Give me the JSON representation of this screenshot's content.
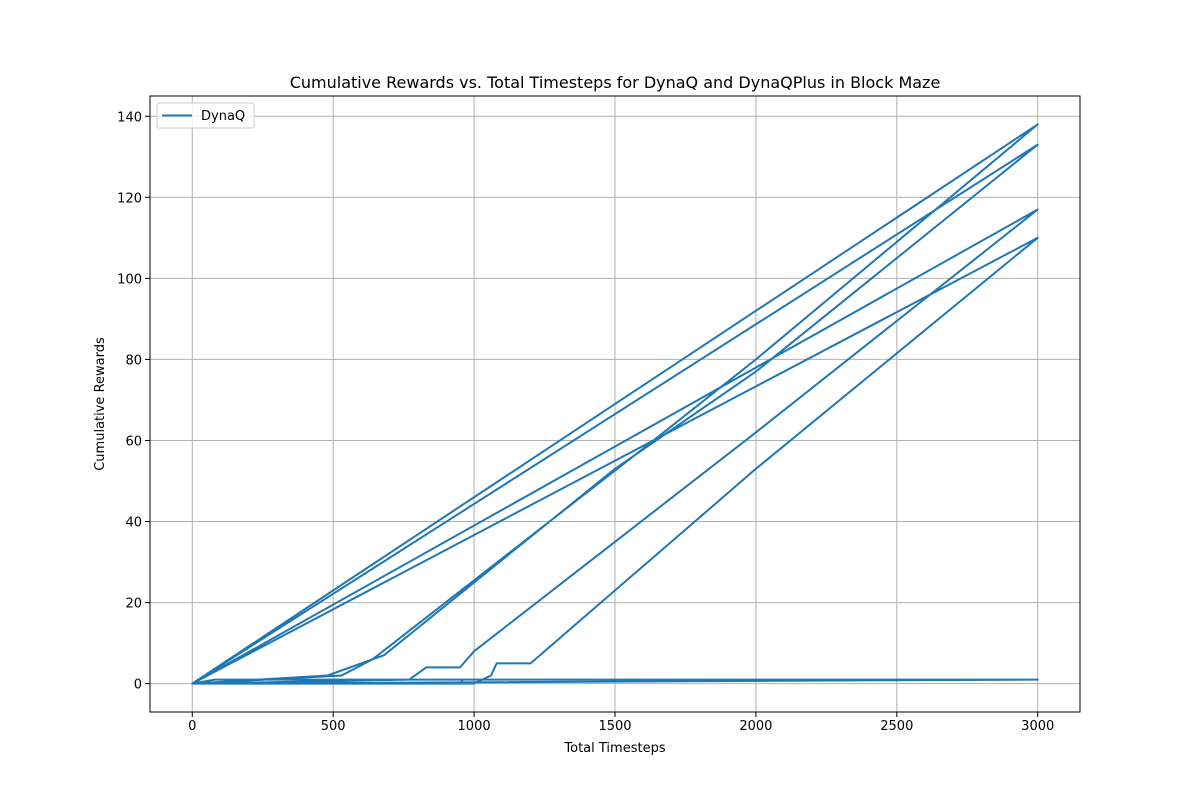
{
  "chart_data": {
    "type": "line",
    "title": "Cumulative Rewards vs. Total Timesteps for DynaQ and DynaQPlus in Block Maze",
    "xlabel": "Total Timesteps",
    "ylabel": "Cumulative Rewards",
    "xlim": [
      -150,
      3150
    ],
    "ylim": [
      -7,
      145
    ],
    "xticks": [
      0,
      500,
      1000,
      1500,
      2000,
      2500,
      3000
    ],
    "yticks": [
      0,
      20,
      40,
      60,
      80,
      100,
      120,
      140
    ],
    "xtick_labels": [
      "0",
      "500",
      "1000",
      "1500",
      "2000",
      "2500",
      "3000"
    ],
    "ytick_labels": [
      "0",
      "20",
      "40",
      "60",
      "80",
      "100",
      "120",
      "140"
    ],
    "grid": true,
    "legend_position": "top-left",
    "color": "#1f77b4",
    "series": [
      {
        "name": "DynaQ",
        "points": [
          [
            0,
            0
          ],
          [
            950,
            0
          ],
          [
            960,
            1
          ],
          [
            3000,
            1
          ],
          [
            0,
            0
          ],
          [
            3000,
            138
          ],
          [
            0,
            0
          ],
          [
            530,
            2
          ],
          [
            640,
            6
          ],
          [
            1600,
            58
          ],
          [
            2000,
            80
          ],
          [
            3000,
            138
          ],
          [
            0,
            0
          ],
          [
            480,
            2
          ],
          [
            680,
            7
          ],
          [
            1500,
            53
          ],
          [
            2000,
            77
          ],
          [
            3000,
            133
          ],
          [
            0,
            0
          ],
          [
            3000,
            117
          ],
          [
            0,
            0
          ],
          [
            770,
            1
          ],
          [
            830,
            4
          ],
          [
            950,
            4
          ],
          [
            1000,
            8
          ],
          [
            1500,
            35
          ],
          [
            2000,
            62
          ],
          [
            3000,
            117
          ],
          [
            0,
            0
          ],
          [
            3000,
            110
          ],
          [
            0,
            0
          ],
          [
            1000,
            0
          ],
          [
            1060,
            2
          ],
          [
            1080,
            5
          ],
          [
            1200,
            5
          ],
          [
            1500,
            23
          ],
          [
            2000,
            53
          ],
          [
            3000,
            110
          ],
          [
            0,
            0
          ],
          [
            80,
            1
          ],
          [
            3000,
            1
          ]
        ]
      }
    ]
  }
}
